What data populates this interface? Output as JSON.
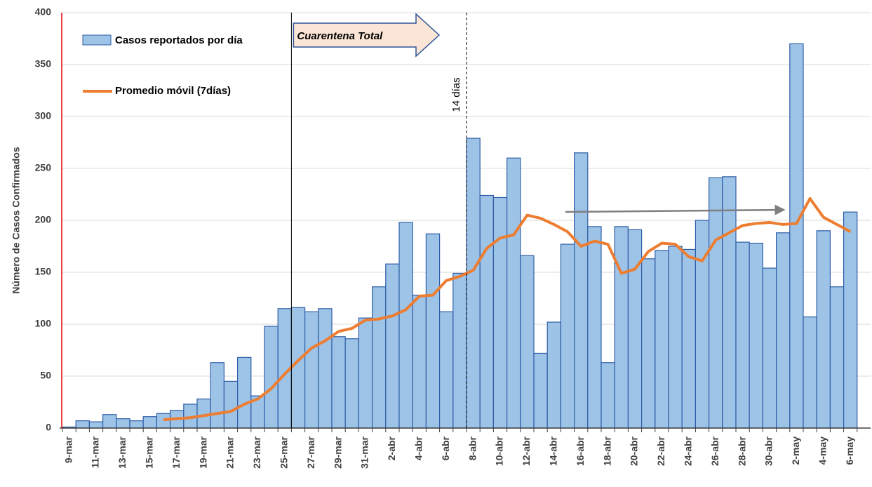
{
  "chart_data": {
    "type": "bar",
    "y_label": "Número de Casos Confirmados",
    "categories": [
      "9-mar",
      null,
      "11-mar",
      null,
      "13-mar",
      null,
      "15-mar",
      null,
      "17-mar",
      null,
      "19-mar",
      null,
      "21-mar",
      null,
      "23-mar",
      null,
      "25-mar",
      null,
      "27-mar",
      null,
      "29-mar",
      null,
      "31-mar",
      null,
      "2-abr",
      null,
      "4-abr",
      null,
      "6-abr",
      null,
      "8-abr",
      null,
      "10-abr",
      null,
      "12-abr",
      null,
      "14-abr",
      null,
      "16-abr",
      null,
      "18-abr",
      null,
      "20-abr",
      null,
      "22-abr",
      null,
      "24-abr",
      null,
      "26-abr",
      null,
      "28-abr",
      null,
      "30-abr",
      null,
      "2-may",
      null,
      "4-may",
      null,
      "6-may",
      null
    ],
    "series": [
      {
        "name": "Casos reportados por día",
        "type": "bar",
        "color": "#9dc3e6",
        "values": [
          1,
          7,
          6,
          13,
          9,
          7,
          11,
          14,
          17,
          23,
          28,
          63,
          45,
          68,
          31,
          98,
          115,
          116,
          112,
          115,
          88,
          86,
          106,
          136,
          158,
          198,
          128,
          187,
          112,
          149,
          279,
          224,
          222,
          260,
          166,
          72,
          102,
          177,
          265,
          194,
          63,
          194,
          191,
          163,
          171,
          175,
          172,
          200,
          241,
          242,
          179,
          178,
          154,
          188,
          370,
          107,
          190,
          136,
          208,
          null
        ]
      },
      {
        "name": "Promedio móvil (7días)",
        "type": "line",
        "color": "#ed7d31",
        "values": [
          null,
          null,
          null,
          null,
          null,
          null,
          null,
          8,
          9,
          10,
          12,
          14,
          16,
          23,
          28,
          38,
          52,
          65,
          77,
          84,
          93,
          96,
          104,
          105,
          108,
          114,
          127,
          128,
          142,
          146,
          152,
          173,
          183,
          186,
          205,
          202,
          196,
          189,
          175,
          180,
          177,
          149,
          153,
          170,
          178,
          177,
          165,
          161,
          181,
          188,
          195,
          197,
          198,
          196,
          197,
          221,
          203,
          196,
          189,
          null
        ]
      }
    ],
    "annotations": [
      "Cuarentena Total",
      "14 días"
    ],
    "ylim": [
      0,
      400
    ],
    "yticks": [
      0,
      50,
      100,
      150,
      200,
      250,
      300,
      350,
      400
    ],
    "grid": true
  }
}
